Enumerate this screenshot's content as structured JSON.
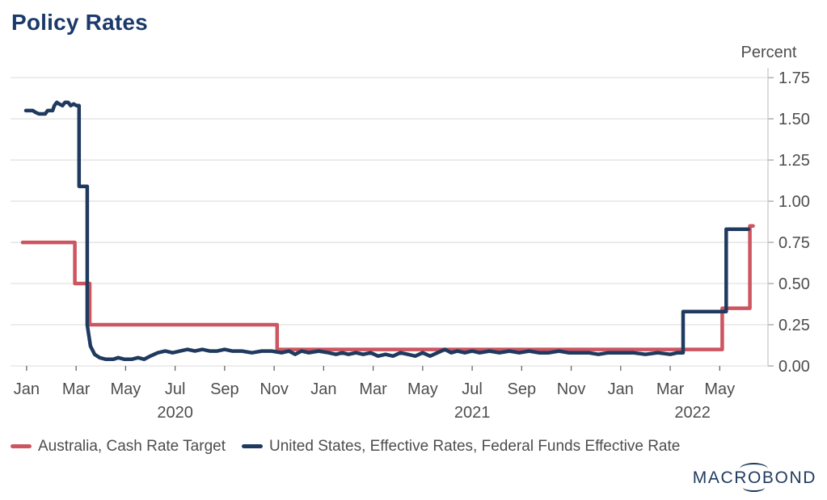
{
  "header": {
    "title": "Policy Rates"
  },
  "chart_data": {
    "type": "line",
    "title": "Policy Rates",
    "xlabel": "",
    "ylabel": "Percent",
    "ylim": [
      0,
      1.78
    ],
    "xlim_months": [
      -0.15,
      30.45
    ],
    "grid": "horizontal",
    "legend_position": "bottom-left",
    "x_unit": "months since Jan 2020",
    "y_ticks": [
      {
        "v": 0.0,
        "label": "0.00"
      },
      {
        "v": 0.25,
        "label": "0.25"
      },
      {
        "v": 0.5,
        "label": "0.50"
      },
      {
        "v": 0.75,
        "label": "0.75"
      },
      {
        "v": 1.0,
        "label": "1.00"
      },
      {
        "v": 1.25,
        "label": "1.25"
      },
      {
        "v": 1.5,
        "label": "1.50"
      },
      {
        "v": 1.75,
        "label": "1.75"
      }
    ],
    "x_ticks": [
      {
        "t": 0.5,
        "label": "Jan"
      },
      {
        "t": 2.5,
        "label": "Mar"
      },
      {
        "t": 4.5,
        "label": "May"
      },
      {
        "t": 6.5,
        "label": "Jul"
      },
      {
        "t": 8.5,
        "label": "Sep"
      },
      {
        "t": 10.5,
        "label": "Nov"
      },
      {
        "t": 12.5,
        "label": "Jan"
      },
      {
        "t": 14.5,
        "label": "Mar"
      },
      {
        "t": 16.5,
        "label": "May"
      },
      {
        "t": 18.5,
        "label": "Jul"
      },
      {
        "t": 20.5,
        "label": "Sep"
      },
      {
        "t": 22.5,
        "label": "Nov"
      },
      {
        "t": 24.5,
        "label": "Jan"
      },
      {
        "t": 26.5,
        "label": "Mar"
      },
      {
        "t": 28.5,
        "label": "May"
      }
    ],
    "year_labels": [
      {
        "t": 6.5,
        "label": "2020"
      },
      {
        "t": 18.5,
        "label": "2021"
      },
      {
        "t": 27.4,
        "label": "2022"
      }
    ],
    "series": [
      {
        "name": "Australia, Cash Rate Target",
        "color": "#cd5560",
        "points": [
          [
            0.34,
            0.75
          ],
          [
            2.45,
            0.75
          ],
          [
            2.45,
            0.5
          ],
          [
            3.05,
            0.5
          ],
          [
            3.05,
            0.25
          ],
          [
            10.62,
            0.25
          ],
          [
            10.62,
            0.1
          ],
          [
            28.6,
            0.1
          ],
          [
            28.6,
            0.35
          ],
          [
            29.72,
            0.35
          ],
          [
            29.72,
            0.85
          ],
          [
            29.85,
            0.85
          ]
        ]
      },
      {
        "name": "United States, Effective Rates, Federal Funds Effective Rate",
        "color": "#1f3a5e",
        "points": [
          [
            0.47,
            1.55
          ],
          [
            0.75,
            1.55
          ],
          [
            0.85,
            1.54
          ],
          [
            1.0,
            1.53
          ],
          [
            1.25,
            1.53
          ],
          [
            1.35,
            1.55
          ],
          [
            1.55,
            1.55
          ],
          [
            1.62,
            1.58
          ],
          [
            1.72,
            1.6
          ],
          [
            1.82,
            1.59
          ],
          [
            1.95,
            1.58
          ],
          [
            2.05,
            1.6
          ],
          [
            2.18,
            1.6
          ],
          [
            2.28,
            1.58
          ],
          [
            2.4,
            1.59
          ],
          [
            2.52,
            1.58
          ],
          [
            2.62,
            1.58
          ],
          [
            2.62,
            1.09
          ],
          [
            2.95,
            1.09
          ],
          [
            2.95,
            0.25
          ],
          [
            3.08,
            0.12
          ],
          [
            3.25,
            0.07
          ],
          [
            3.45,
            0.05
          ],
          [
            3.7,
            0.04
          ],
          [
            4.0,
            0.04
          ],
          [
            4.2,
            0.05
          ],
          [
            4.45,
            0.04
          ],
          [
            4.75,
            0.04
          ],
          [
            5.0,
            0.05
          ],
          [
            5.25,
            0.04
          ],
          [
            5.5,
            0.06
          ],
          [
            5.8,
            0.08
          ],
          [
            6.1,
            0.09
          ],
          [
            6.4,
            0.08
          ],
          [
            6.7,
            0.09
          ],
          [
            7.0,
            0.1
          ],
          [
            7.3,
            0.09
          ],
          [
            7.6,
            0.1
          ],
          [
            7.9,
            0.09
          ],
          [
            8.2,
            0.09
          ],
          [
            8.5,
            0.1
          ],
          [
            8.8,
            0.09
          ],
          [
            9.2,
            0.09
          ],
          [
            9.6,
            0.08
          ],
          [
            10.0,
            0.09
          ],
          [
            10.4,
            0.09
          ],
          [
            10.8,
            0.08
          ],
          [
            11.1,
            0.09
          ],
          [
            11.35,
            0.07
          ],
          [
            11.6,
            0.09
          ],
          [
            11.9,
            0.08
          ],
          [
            12.3,
            0.09
          ],
          [
            12.7,
            0.08
          ],
          [
            13.0,
            0.07
          ],
          [
            13.25,
            0.08
          ],
          [
            13.5,
            0.07
          ],
          [
            13.8,
            0.08
          ],
          [
            14.1,
            0.07
          ],
          [
            14.4,
            0.08
          ],
          [
            14.7,
            0.06
          ],
          [
            15.0,
            0.07
          ],
          [
            15.3,
            0.06
          ],
          [
            15.6,
            0.08
          ],
          [
            15.9,
            0.07
          ],
          [
            16.2,
            0.06
          ],
          [
            16.5,
            0.08
          ],
          [
            16.8,
            0.06
          ],
          [
            17.1,
            0.08
          ],
          [
            17.4,
            0.1
          ],
          [
            17.65,
            0.08
          ],
          [
            17.9,
            0.09
          ],
          [
            18.2,
            0.08
          ],
          [
            18.5,
            0.09
          ],
          [
            18.8,
            0.08
          ],
          [
            19.2,
            0.09
          ],
          [
            19.6,
            0.08
          ],
          [
            20.0,
            0.09
          ],
          [
            20.4,
            0.08
          ],
          [
            20.8,
            0.09
          ],
          [
            21.2,
            0.08
          ],
          [
            21.6,
            0.08
          ],
          [
            22.0,
            0.09
          ],
          [
            22.4,
            0.08
          ],
          [
            22.8,
            0.08
          ],
          [
            23.2,
            0.08
          ],
          [
            23.6,
            0.07
          ],
          [
            24.0,
            0.08
          ],
          [
            24.5,
            0.08
          ],
          [
            25.0,
            0.08
          ],
          [
            25.5,
            0.07
          ],
          [
            26.0,
            0.08
          ],
          [
            26.5,
            0.07
          ],
          [
            26.8,
            0.08
          ],
          [
            27.02,
            0.08
          ],
          [
            27.02,
            0.33
          ],
          [
            28.76,
            0.33
          ],
          [
            28.76,
            0.83
          ],
          [
            29.66,
            0.83
          ]
        ]
      }
    ]
  },
  "legend": {
    "items": [
      {
        "label": "Australia, Cash Rate Target"
      },
      {
        "label": "United States, Effective Rates, Federal Funds Effective Rate"
      }
    ]
  },
  "branding": {
    "logo_left": "MACR",
    "logo_o": "O",
    "logo_right": "BOND"
  },
  "colors": {
    "australia_line": "#cd5560",
    "us_line": "#1f3a5e",
    "title": "#1b3a6b",
    "axis_text": "#4d4d4d",
    "gridline": "#e2e2e2",
    "axis_line": "#c9c9c9"
  }
}
